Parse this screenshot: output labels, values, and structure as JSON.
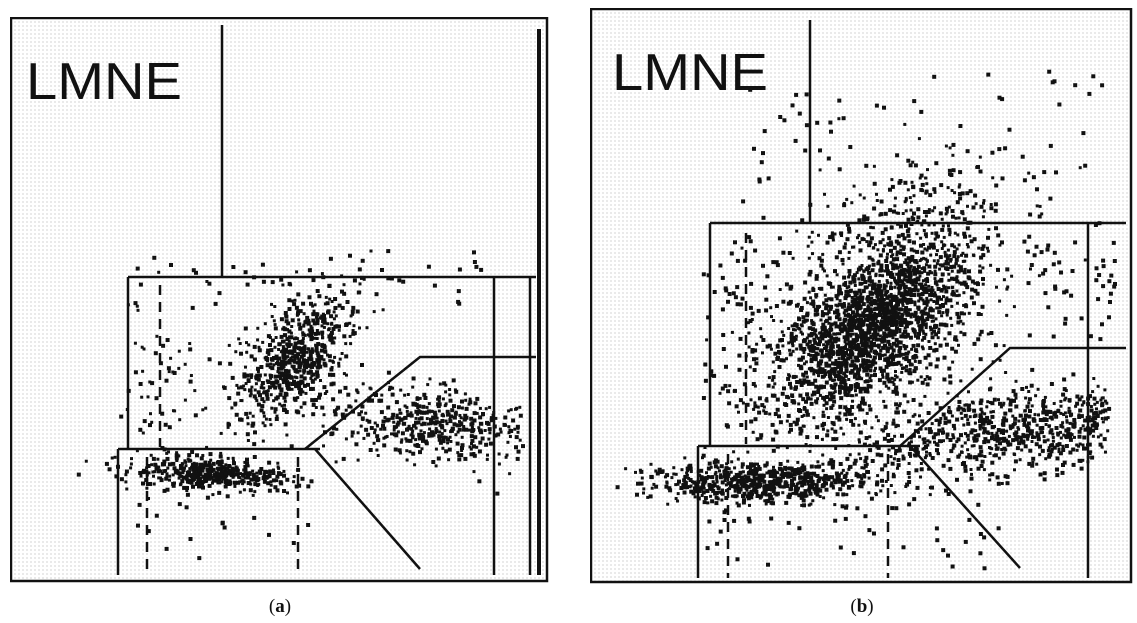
{
  "chart_data": [
    {
      "type": "scatter",
      "panel_label": "LMNE",
      "caption_letter": "a",
      "background": "stippled",
      "point_color": "#111111"
    },
    {
      "type": "scatter",
      "panel_label": "LMNE",
      "caption_letter": "b",
      "background": "stippled",
      "point_color": "#111111"
    }
  ],
  "colors": {
    "frame": "#111111",
    "dots": "#111111",
    "stipple": "#9a9a9a",
    "paper": "#ffffff"
  }
}
